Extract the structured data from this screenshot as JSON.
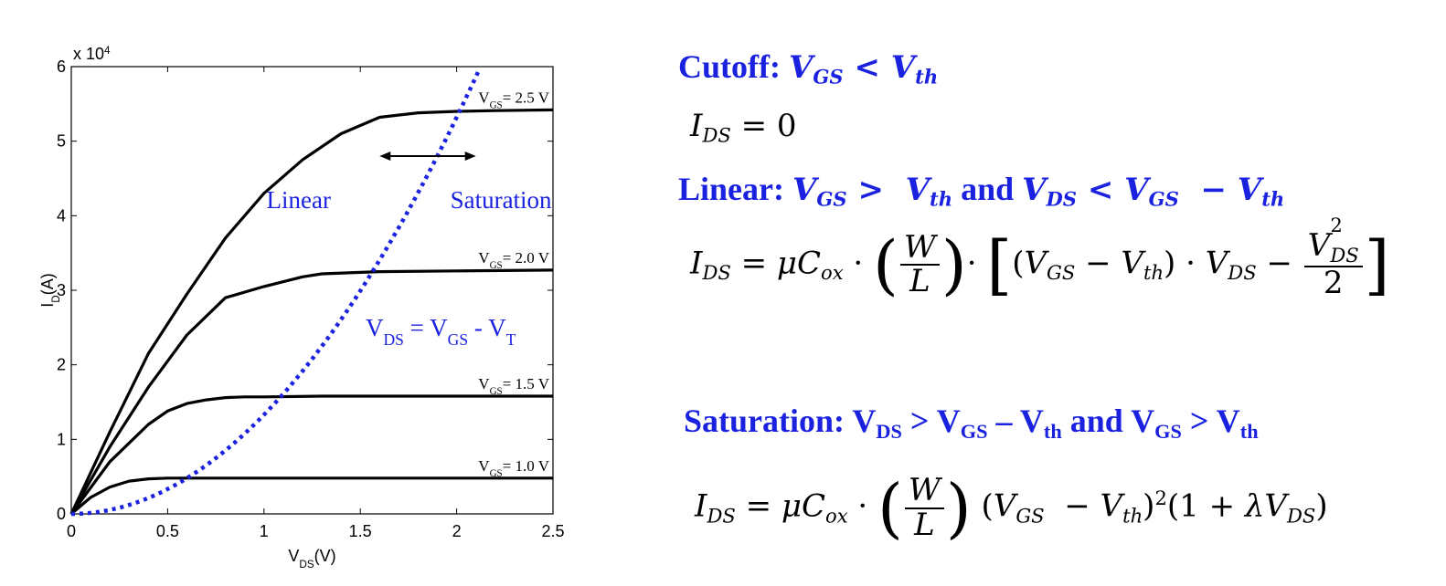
{
  "chart_data": {
    "type": "line",
    "title": "",
    "xlabel": "V",
    "xlabel_sub": "DS",
    "xlabel_unit": "(V)",
    "ylabel": "I",
    "ylabel_sub": "D",
    "ylabel_unit": "(A)",
    "y_multiplier": "x 10",
    "y_multiplier_exp": "4",
    "xlim": [
      0,
      2.5
    ],
    "ylim": [
      0,
      6
    ],
    "x_ticks": [
      "0",
      "0.5",
      "1",
      "1.5",
      "2",
      "2.5"
    ],
    "y_ticks": [
      "0",
      "1",
      "2",
      "3",
      "4",
      "5",
      "6"
    ],
    "series": [
      {
        "name": "V",
        "name_sub": "GS",
        "name_val": "= 2.5 V",
        "x": [
          0,
          0.2,
          0.4,
          0.6,
          0.8,
          1.0,
          1.2,
          1.4,
          1.6,
          1.8,
          2.0,
          2.2,
          2.5
        ],
        "y": [
          0,
          1.1,
          2.15,
          2.95,
          3.7,
          4.3,
          4.75,
          5.1,
          5.32,
          5.38,
          5.4,
          5.41,
          5.42
        ]
      },
      {
        "name": "V",
        "name_sub": "GS",
        "name_val": "= 2.0 V",
        "x": [
          0,
          0.2,
          0.4,
          0.6,
          0.8,
          1.0,
          1.2,
          1.3,
          1.6,
          2.0,
          2.5
        ],
        "y": [
          0,
          0.9,
          1.7,
          2.4,
          2.9,
          3.05,
          3.18,
          3.22,
          3.25,
          3.26,
          3.27
        ]
      },
      {
        "name": "V",
        "name_sub": "GS",
        "name_val": "= 1.5 V",
        "x": [
          0,
          0.2,
          0.4,
          0.5,
          0.6,
          0.7,
          0.8,
          0.9,
          1.0,
          1.3,
          2.0,
          2.5
        ],
        "y": [
          0,
          0.7,
          1.2,
          1.38,
          1.48,
          1.53,
          1.56,
          1.57,
          1.57,
          1.58,
          1.58,
          1.58
        ]
      },
      {
        "name": "V",
        "name_sub": "GS",
        "name_val": "= 1.0 V",
        "x": [
          0,
          0.1,
          0.2,
          0.3,
          0.4,
          0.5,
          1.0,
          2.5
        ],
        "y": [
          0,
          0.22,
          0.36,
          0.44,
          0.47,
          0.48,
          0.48,
          0.48
        ]
      }
    ],
    "boundary": {
      "name": "V",
      "name_sub": "DS",
      "mid1": " = V",
      "mid1_sub": "GS",
      "mid2": " - V",
      "mid2_sub": "T",
      "color": "#1a22e0",
      "coeff": 1.33
    },
    "annotations": {
      "linear": "Linear",
      "saturation": "Saturation",
      "arrow_x": [
        1.6,
        2.1
      ],
      "arrow_y": 4.8
    }
  },
  "equations": {
    "cutoff_heading": "Cutoff:",
    "linear_heading": "Linear:",
    "and": "and",
    "saturation_heading": "Saturation:",
    "sat_cond": {
      "v1": "V",
      "v1_sub": "DS",
      "gt": " > V",
      "v2_sub": "GS",
      "minus": " – V",
      "v3_sub": "th",
      "and": " and V",
      "v4_sub": "GS",
      "gt2": " > V",
      "v5_sub": "th"
    }
  },
  "colors": {
    "accent": "#1a22e0",
    "curve": "#000000"
  }
}
